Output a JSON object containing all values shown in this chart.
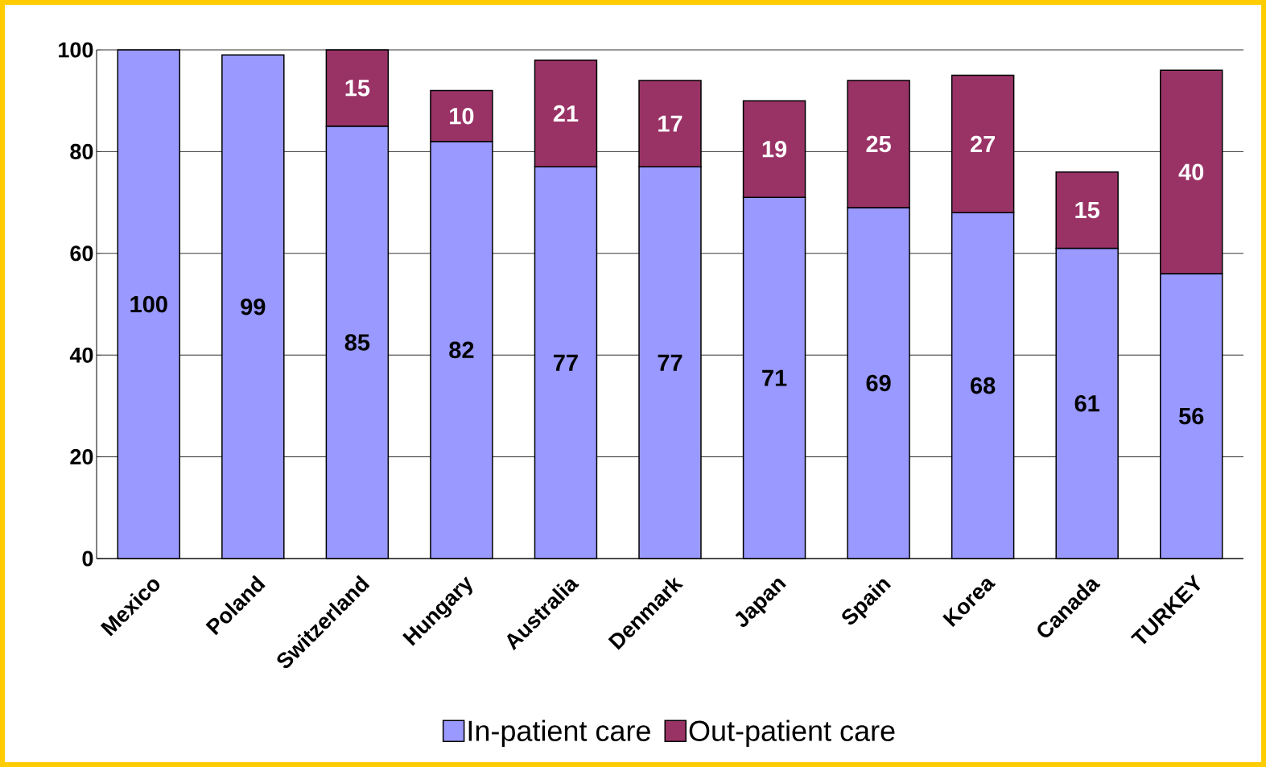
{
  "chart_data": {
    "type": "bar",
    "stacked": true,
    "categories": [
      "Mexico",
      "Poland",
      "Switzerland",
      "Hungary",
      "Australia",
      "Denmark",
      "Japan",
      "Spain",
      "Korea",
      "Canada",
      "TURKEY"
    ],
    "series": [
      {
        "name": "In-patient care",
        "color": "#9999ff",
        "values": [
          100,
          99,
          85,
          82,
          77,
          77,
          71,
          69,
          68,
          61,
          56
        ]
      },
      {
        "name": "Out-patient care",
        "color": "#993366",
        "values": [
          null,
          null,
          15,
          10,
          21,
          17,
          19,
          25,
          27,
          15,
          40
        ]
      }
    ],
    "ylim": [
      0,
      100
    ],
    "yticks": [
      0,
      20,
      40,
      60,
      80,
      100
    ],
    "grid": "y",
    "legend": "bottom",
    "data_labels": true
  }
}
